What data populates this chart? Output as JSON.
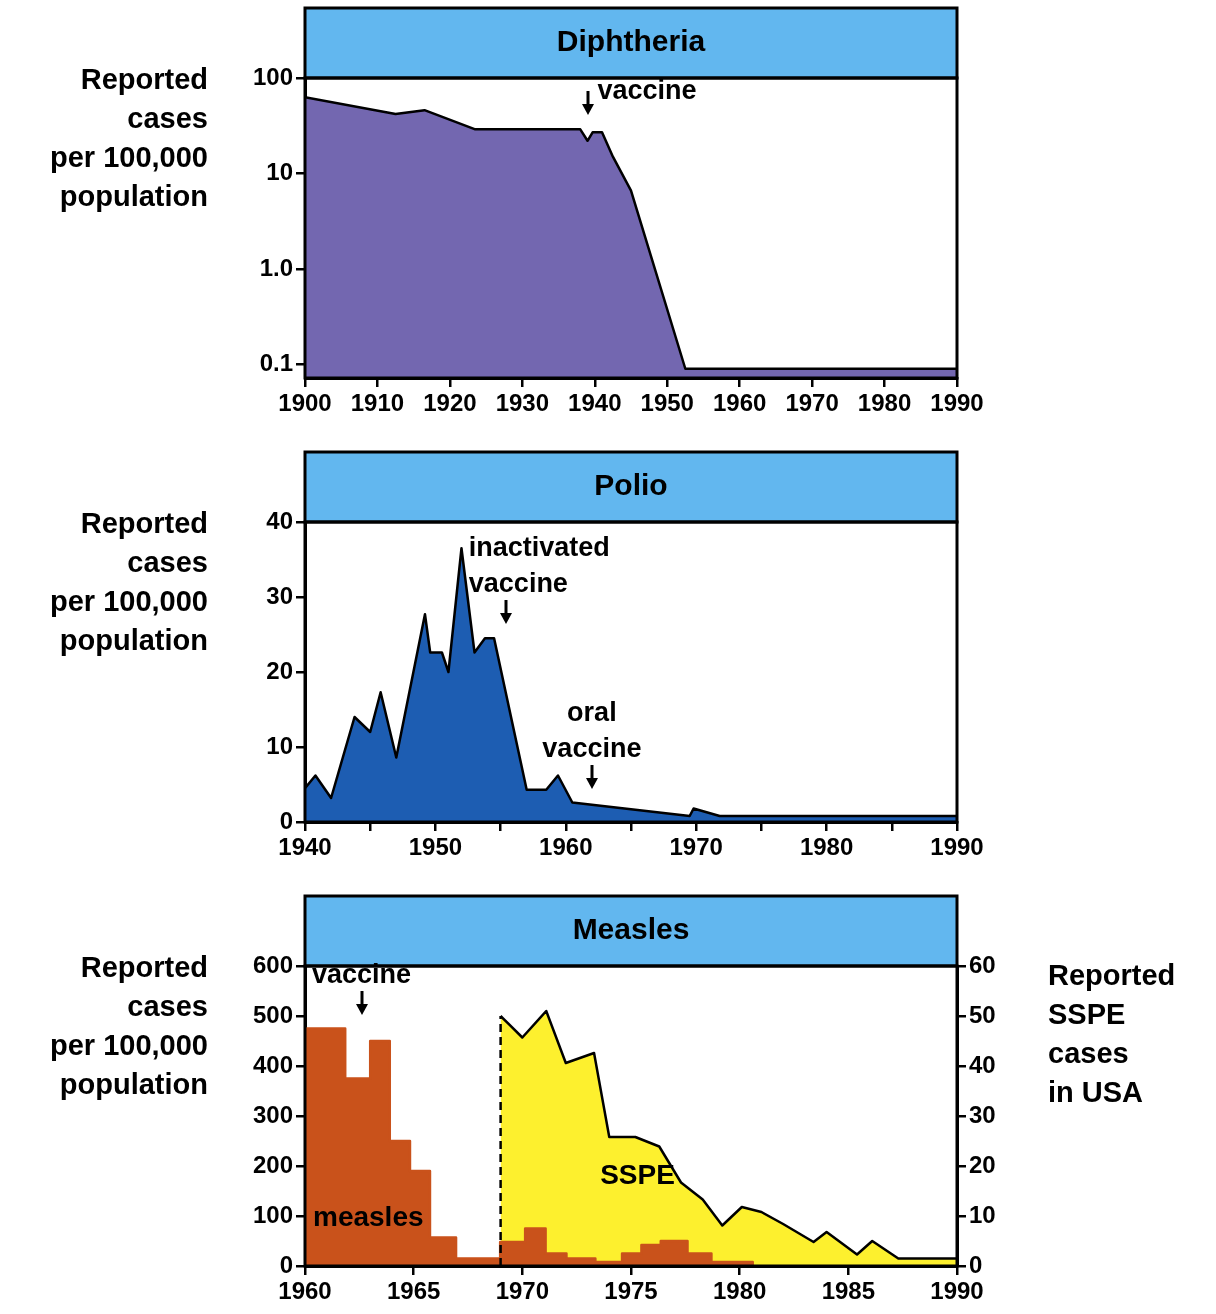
{
  "chart_data": [
    {
      "type": "area",
      "title": "Diphtheria",
      "ylabel": "Reported\ncases\nper 100,000\npopulation",
      "log": true,
      "color": "#7367b0",
      "x": [
        1900,
        1912.5,
        1916.5,
        1923.5,
        1938,
        1939,
        1939.7,
        1941,
        1942.5,
        1945,
        1952.5,
        1990
      ],
      "values": [
        63,
        42,
        46,
        29,
        29,
        22,
        27,
        27,
        15,
        6.6,
        0.09,
        0.09
      ],
      "xlim": [
        1900,
        1990
      ],
      "xticks": [
        1900,
        1910,
        1920,
        1930,
        1940,
        1950,
        1960,
        1970,
        1980,
        1990
      ],
      "ylim": [
        0.072,
        100
      ],
      "yticks": [
        0.1,
        {
          "value": 1,
          "label": "1.0"
        },
        10,
        100
      ],
      "ref_lines": [
        {
          "axis": "x",
          "value": 1939,
          "label": "vaccine"
        }
      ]
    },
    {
      "type": "area",
      "title": "Polio",
      "ylabel": "Reported\ncases\nper 100,000\npopulation",
      "color": "#1d5db2",
      "x": [
        1940,
        1940.8,
        1942,
        1943.8,
        1945,
        1945.8,
        1947,
        1949.2,
        1949.6,
        1950.5,
        1951,
        1952,
        1953,
        1953.8,
        1954.5,
        1957,
        1958.5,
        1959.4,
        1960.5,
        1969.5,
        1969.8,
        1971.8,
        1990
      ],
      "values": [
        4.5,
        6.2,
        3.2,
        14,
        12,
        17.3,
        8.6,
        27.7,
        22.6,
        22.6,
        20,
        36.5,
        22.6,
        24.5,
        24.5,
        4.3,
        4.3,
        6.2,
        2.6,
        0.8,
        1.8,
        0.8,
        0.8
      ],
      "xlim": [
        1940,
        1990
      ],
      "xticks": [
        1940,
        {
          "value": 1945,
          "label": null
        },
        1950,
        {
          "value": 1955,
          "label": null
        },
        1960,
        {
          "value": 1965,
          "label": null
        },
        1970,
        {
          "value": 1975,
          "label": null
        },
        1980,
        {
          "value": 1985,
          "label": null
        },
        1990
      ],
      "ylim": [
        0,
        40
      ],
      "yticks": [
        0,
        10,
        20,
        30,
        40
      ],
      "ref_lines": [
        {
          "axis": "x",
          "value": 1955.4,
          "label": "inactivated\nvaccine"
        },
        {
          "axis": "x",
          "value": 1962,
          "label": "oral\nvaccine"
        }
      ]
    },
    {
      "type": "area",
      "title": "Measles",
      "ylabel": "Reported\ncases\nper 100,000\npopulation",
      "y2label": "Reported\nSSPE\ncases\nin USA",
      "series": [
        {
          "name": "measles",
          "type": "histogram",
          "color": "#c9521b",
          "bins": [
            1960,
            1961.85,
            1963,
            1963.9,
            1964.83,
            1965.75,
            1966.95,
            1968.98,
            1970.13,
            1971.07,
            1972.03,
            1973.36,
            1974.59,
            1975.48,
            1976.37,
            1977.6,
            1978.7,
            1980.6
          ],
          "values": [
            475,
            375,
            450,
            250,
            190,
            57,
            15,
            48,
            75,
            25,
            15,
            8,
            25,
            42,
            50,
            25,
            8
          ]
        },
        {
          "name": "SSPE",
          "axis": "y2",
          "color": "#fdf02e",
          "x": [
            1969,
            1970,
            1971.1,
            1972,
            1973.3,
            1974,
            1975.2,
            1976.3,
            1977.3,
            1978.3,
            1979.2,
            1980.1,
            1981,
            1982,
            1983.4,
            1984,
            1985.4,
            1986.1,
            1987.3,
            1990
          ],
          "values": [
            50,
            45.7,
            51,
            40.6,
            42.6,
            25.8,
            25.8,
            23.9,
            16.7,
            13.3,
            8.1,
            11.8,
            10.8,
            8.4,
            4.8,
            6.8,
            2.3,
            5,
            1.5,
            1.5
          ]
        }
      ],
      "xlim": [
        1960,
        1990
      ],
      "xticks": [
        1960,
        1965,
        1970,
        1975,
        1980,
        1985,
        1990
      ],
      "ylim": [
        0,
        600
      ],
      "yticks": [
        0,
        100,
        200,
        300,
        400,
        500,
        600
      ],
      "y2lim": [
        0,
        60
      ],
      "y2ticks": [
        0,
        10,
        20,
        30,
        40,
        50,
        60
      ],
      "ref_lines": [
        {
          "axis": "x",
          "value": 1962.6,
          "label": "vaccine"
        },
        {
          "axis": "x",
          "value": 1969,
          "line_style": "dashed"
        }
      ]
    }
  ]
}
